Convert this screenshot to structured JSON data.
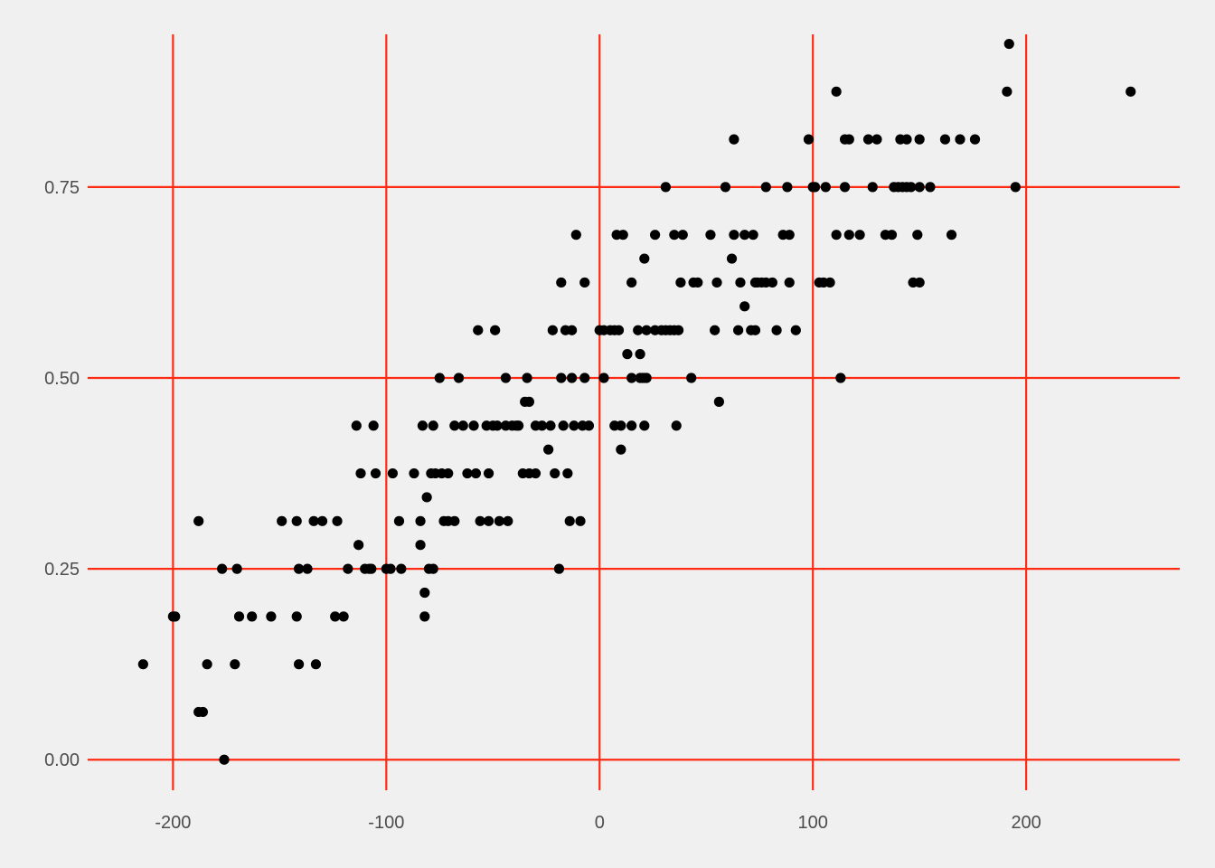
{
  "colors": {
    "background": "#f0f0f0",
    "grid": "#ff2a12",
    "point": "#000000",
    "tick_text": "#4d4d4d"
  },
  "chart_data": {
    "type": "scatter",
    "title": "",
    "xlabel": "",
    "ylabel": "",
    "xlim": [
      -240,
      272
    ],
    "ylim": [
      -0.04,
      0.95
    ],
    "x_ticks": [
      -200,
      -100,
      0,
      100,
      200
    ],
    "x_tick_labels": [
      "-200",
      "-100",
      "0",
      "100",
      "200"
    ],
    "y_ticks": [
      0,
      0.25,
      0.5,
      0.75
    ],
    "y_tick_labels": [
      "0.00",
      "0.25",
      "0.50",
      "0.75"
    ],
    "grid": true,
    "legend": "none",
    "points": [
      [
        -214,
        0.125
      ],
      [
        -200,
        0.1875
      ],
      [
        -199,
        0.1875
      ],
      [
        -188,
        0.3125
      ],
      [
        -188,
        0.0625
      ],
      [
        -186,
        0.0625
      ],
      [
        -184,
        0.125
      ],
      [
        -177,
        0.25
      ],
      [
        -176,
        0
      ],
      [
        -171,
        0.125
      ],
      [
        -170,
        0.25
      ],
      [
        -169,
        0.1875
      ],
      [
        -163,
        0.1875
      ],
      [
        -154,
        0.1875
      ],
      [
        -149,
        0.3125
      ],
      [
        -142,
        0.3125
      ],
      [
        -142,
        0.1875
      ],
      [
        -141,
        0.25
      ],
      [
        -141,
        0.125
      ],
      [
        -137,
        0.25
      ],
      [
        -134,
        0.3125
      ],
      [
        -133,
        0.125
      ],
      [
        -130,
        0.3125
      ],
      [
        -124,
        0.1875
      ],
      [
        -123,
        0.3125
      ],
      [
        -120,
        0.1875
      ],
      [
        -118,
        0.25
      ],
      [
        -114,
        0.4375
      ],
      [
        -113,
        0.28125
      ],
      [
        -112,
        0.375
      ],
      [
        -110,
        0.25
      ],
      [
        -108,
        0.25
      ],
      [
        -107,
        0.25
      ],
      [
        -106,
        0.4375
      ],
      [
        -105,
        0.375
      ],
      [
        -100,
        0.25
      ],
      [
        -98,
        0.25
      ],
      [
        -97,
        0.375
      ],
      [
        -94,
        0.3125
      ],
      [
        -93,
        0.25
      ],
      [
        -87,
        0.375
      ],
      [
        -84,
        0.3125
      ],
      [
        -84,
        0.28125
      ],
      [
        -83,
        0.4375
      ],
      [
        -82,
        0.21875
      ],
      [
        -82,
        0.1875
      ],
      [
        -81,
        0.34375
      ],
      [
        -80,
        0.25
      ],
      [
        -79,
        0.375
      ],
      [
        -78,
        0.4375
      ],
      [
        -78,
        0.25
      ],
      [
        -77,
        0.375
      ],
      [
        -75,
        0.5
      ],
      [
        -74,
        0.375
      ],
      [
        -73,
        0.3125
      ],
      [
        -71,
        0.375
      ],
      [
        -71,
        0.3125
      ],
      [
        -68,
        0.4375
      ],
      [
        -68,
        0.3125
      ],
      [
        -66,
        0.5
      ],
      [
        -64,
        0.4375
      ],
      [
        -62,
        0.375
      ],
      [
        -59,
        0.4375
      ],
      [
        -58,
        0.375
      ],
      [
        -57,
        0.5625
      ],
      [
        -56,
        0.3125
      ],
      [
        -53,
        0.4375
      ],
      [
        -52,
        0.375
      ],
      [
        -52,
        0.3125
      ],
      [
        -50,
        0.4375
      ],
      [
        -49,
        0.5625
      ],
      [
        -48,
        0.4375
      ],
      [
        -47,
        0.3125
      ],
      [
        -44,
        0.5
      ],
      [
        -44,
        0.4375
      ],
      [
        -43,
        0.3125
      ],
      [
        -41,
        0.4375
      ],
      [
        -39,
        0.4375
      ],
      [
        -38,
        0.4375
      ],
      [
        -36,
        0.375
      ],
      [
        -35,
        0.46875
      ],
      [
        -34,
        0.5
      ],
      [
        -33,
        0.46875
      ],
      [
        -33,
        0.375
      ],
      [
        -30,
        0.375
      ],
      [
        -30,
        0.4375
      ],
      [
        -27,
        0.4375
      ],
      [
        -24,
        0.40625
      ],
      [
        -23,
        0.4375
      ],
      [
        -22,
        0.5625
      ],
      [
        -21,
        0.375
      ],
      [
        -19,
        0.25
      ],
      [
        -18,
        0.625
      ],
      [
        -18,
        0.5
      ],
      [
        -17,
        0.4375
      ],
      [
        -16,
        0.5625
      ],
      [
        -15,
        0.375
      ],
      [
        -14,
        0.3125
      ],
      [
        -13,
        0.5625
      ],
      [
        -13,
        0.5
      ],
      [
        -12,
        0.4375
      ],
      [
        -11,
        0.6875
      ],
      [
        -9,
        0.3125
      ],
      [
        -8,
        0.4375
      ],
      [
        -7,
        0.625
      ],
      [
        -7,
        0.5
      ],
      [
        -5,
        0.4375
      ],
      [
        0,
        0.5625
      ],
      [
        2,
        0.5625
      ],
      [
        2,
        0.5
      ],
      [
        5,
        0.5625
      ],
      [
        7,
        0.4375
      ],
      [
        7,
        0.5625
      ],
      [
        8,
        0.6875
      ],
      [
        9,
        0.5625
      ],
      [
        10,
        0.4375
      ],
      [
        10,
        0.40625
      ],
      [
        11,
        0.6875
      ],
      [
        13,
        0.53125
      ],
      [
        15,
        0.625
      ],
      [
        15,
        0.4375
      ],
      [
        15,
        0.5
      ],
      [
        18,
        0.5625
      ],
      [
        19,
        0.53125
      ],
      [
        19,
        0.5
      ],
      [
        20,
        0.5
      ],
      [
        21,
        0.65625
      ],
      [
        21,
        0.4375
      ],
      [
        21,
        0.5
      ],
      [
        22,
        0.5
      ],
      [
        22,
        0.5625
      ],
      [
        26,
        0.6875
      ],
      [
        26,
        0.5625
      ],
      [
        29,
        0.5625
      ],
      [
        31,
        0.75
      ],
      [
        31,
        0.5625
      ],
      [
        33,
        0.5625
      ],
      [
        35,
        0.6875
      ],
      [
        35,
        0.5625
      ],
      [
        36,
        0.4375
      ],
      [
        37,
        0.5625
      ],
      [
        38,
        0.625
      ],
      [
        39,
        0.6875
      ],
      [
        43,
        0.5
      ],
      [
        44,
        0.625
      ],
      [
        46,
        0.625
      ],
      [
        52,
        0.6875
      ],
      [
        54,
        0.5625
      ],
      [
        55,
        0.625
      ],
      [
        56,
        0.46875
      ],
      [
        59,
        0.75
      ],
      [
        62,
        0.65625
      ],
      [
        63,
        0.8125
      ],
      [
        63,
        0.6875
      ],
      [
        65,
        0.5625
      ],
      [
        66,
        0.625
      ],
      [
        68,
        0.59375
      ],
      [
        68,
        0.6875
      ],
      [
        71,
        0.5625
      ],
      [
        72,
        0.6875
      ],
      [
        73,
        0.625
      ],
      [
        73,
        0.5625
      ],
      [
        74,
        0.625
      ],
      [
        76,
        0.625
      ],
      [
        78,
        0.625
      ],
      [
        78,
        0.75
      ],
      [
        81,
        0.625
      ],
      [
        83,
        0.5625
      ],
      [
        86,
        0.6875
      ],
      [
        88,
        0.75
      ],
      [
        89,
        0.625
      ],
      [
        89,
        0.6875
      ],
      [
        92,
        0.5625
      ],
      [
        98,
        0.8125
      ],
      [
        100,
        0.75
      ],
      [
        101,
        0.75
      ],
      [
        103,
        0.625
      ],
      [
        105,
        0.625
      ],
      [
        106,
        0.75
      ],
      [
        108,
        0.625
      ],
      [
        111,
        0.875
      ],
      [
        111,
        0.6875
      ],
      [
        113,
        0.5
      ],
      [
        115,
        0.8125
      ],
      [
        115,
        0.75
      ],
      [
        117,
        0.8125
      ],
      [
        117,
        0.6875
      ],
      [
        122,
        0.6875
      ],
      [
        126,
        0.8125
      ],
      [
        128,
        0.75
      ],
      [
        130,
        0.8125
      ],
      [
        134,
        0.6875
      ],
      [
        137,
        0.6875
      ],
      [
        138,
        0.75
      ],
      [
        140,
        0.75
      ],
      [
        141,
        0.8125
      ],
      [
        142,
        0.75
      ],
      [
        144,
        0.8125
      ],
      [
        144,
        0.75
      ],
      [
        146,
        0.75
      ],
      [
        147,
        0.625
      ],
      [
        149,
        0.6875
      ],
      [
        150,
        0.8125
      ],
      [
        150,
        0.625
      ],
      [
        150,
        0.75
      ],
      [
        155,
        0.75
      ],
      [
        162,
        0.8125
      ],
      [
        165,
        0.6875
      ],
      [
        169,
        0.8125
      ],
      [
        176,
        0.8125
      ],
      [
        191,
        0.875
      ],
      [
        192,
        0.9375
      ],
      [
        195,
        0.75
      ],
      [
        249,
        0.875
      ]
    ]
  }
}
